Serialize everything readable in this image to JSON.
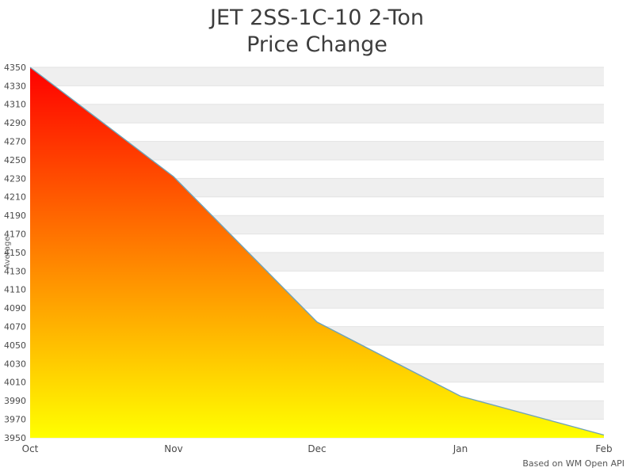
{
  "header": {
    "title_line1": "JET 2SS-1C-10 2-Ton",
    "title_line2": "Price Change"
  },
  "footer": {
    "source_note": "Based on WM Open API"
  },
  "chart_data": {
    "type": "area",
    "title": "JET 2SS-1C-10 2-Ton Price Change",
    "categories": [
      "Oct",
      "Nov",
      "Dec",
      "Jan",
      "Feb"
    ],
    "values": [
      4350,
      4232,
      4075,
      3995,
      3953
    ],
    "xlabel": "",
    "ylabel": "Average",
    "ylim": [
      3950,
      4350
    ],
    "ytick_step": 20,
    "yticks": [
      3950,
      3970,
      3990,
      4010,
      4030,
      4050,
      4070,
      4090,
      4110,
      4130,
      4150,
      4170,
      4190,
      4210,
      4230,
      4250,
      4270,
      4290,
      4310,
      4330,
      4350
    ],
    "grid": true,
    "legend": "none",
    "band_colors": [
      "#efefef",
      "#ffffff"
    ],
    "gridline_color": "#e3e3e3",
    "area_gradient": {
      "top": "#ff0000",
      "bottom": "#ffff00"
    },
    "line_color": "#6fa3b7",
    "tick_label_color": "#4a4a4a",
    "source_note": "Based on WM Open API"
  }
}
